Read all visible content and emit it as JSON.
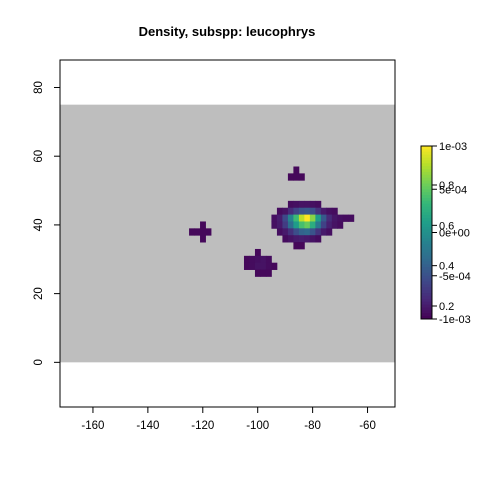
{
  "chart_data": {
    "type": "heatmap",
    "title": "Density, subspp: leucophrys",
    "xlabel": "",
    "ylabel": "",
    "xlim": [
      -172,
      -50
    ],
    "ylim": [
      -13,
      88
    ],
    "x_ticks": [
      -160,
      -140,
      -120,
      -100,
      -80,
      -60
    ],
    "y_ticks": [
      0,
      20,
      40,
      60,
      80
    ],
    "background_region": {
      "x": [
        -172,
        -50
      ],
      "y": [
        0,
        75
      ],
      "color": "#bebebe"
    },
    "cell_size": 2,
    "cells": [
      {
        "x": -86,
        "y": 56,
        "v": 0.02
      },
      {
        "x": -86,
        "y": 54,
        "v": 0.02
      },
      {
        "x": -88,
        "y": 54,
        "v": 0.02
      },
      {
        "x": -84,
        "y": 54,
        "v": 0.02
      },
      {
        "x": -88,
        "y": 46,
        "v": 0.03
      },
      {
        "x": -86,
        "y": 46,
        "v": 0.04
      },
      {
        "x": -84,
        "y": 46,
        "v": 0.05
      },
      {
        "x": -82,
        "y": 46,
        "v": 0.05
      },
      {
        "x": -80,
        "y": 46,
        "v": 0.04
      },
      {
        "x": -78,
        "y": 46,
        "v": 0.03
      },
      {
        "x": -92,
        "y": 44,
        "v": 0.03
      },
      {
        "x": -90,
        "y": 44,
        "v": 0.05
      },
      {
        "x": -88,
        "y": 44,
        "v": 0.12
      },
      {
        "x": -86,
        "y": 44,
        "v": 0.2
      },
      {
        "x": -84,
        "y": 44,
        "v": 0.26
      },
      {
        "x": -82,
        "y": 44,
        "v": 0.28
      },
      {
        "x": -80,
        "y": 44,
        "v": 0.24
      },
      {
        "x": -78,
        "y": 44,
        "v": 0.14
      },
      {
        "x": -76,
        "y": 44,
        "v": 0.07
      },
      {
        "x": -74,
        "y": 44,
        "v": 0.04
      },
      {
        "x": -72,
        "y": 44,
        "v": 0.03
      },
      {
        "x": -94,
        "y": 42,
        "v": 0.04
      },
      {
        "x": -92,
        "y": 42,
        "v": 0.08
      },
      {
        "x": -90,
        "y": 42,
        "v": 0.22
      },
      {
        "x": -88,
        "y": 42,
        "v": 0.45
      },
      {
        "x": -86,
        "y": 42,
        "v": 0.68
      },
      {
        "x": -84,
        "y": 42,
        "v": 0.9
      },
      {
        "x": -82,
        "y": 42,
        "v": 1.0
      },
      {
        "x": -80,
        "y": 42,
        "v": 0.82
      },
      {
        "x": -78,
        "y": 42,
        "v": 0.55
      },
      {
        "x": -76,
        "y": 42,
        "v": 0.28
      },
      {
        "x": -74,
        "y": 42,
        "v": 0.12
      },
      {
        "x": -72,
        "y": 42,
        "v": 0.06
      },
      {
        "x": -70,
        "y": 42,
        "v": 0.04
      },
      {
        "x": -68,
        "y": 42,
        "v": 0.03
      },
      {
        "x": -66,
        "y": 42,
        "v": 0.03
      },
      {
        "x": -94,
        "y": 40,
        "v": 0.04
      },
      {
        "x": -92,
        "y": 40,
        "v": 0.07
      },
      {
        "x": -90,
        "y": 40,
        "v": 0.18
      },
      {
        "x": -88,
        "y": 40,
        "v": 0.36
      },
      {
        "x": -86,
        "y": 40,
        "v": 0.55
      },
      {
        "x": -84,
        "y": 40,
        "v": 0.7
      },
      {
        "x": -82,
        "y": 40,
        "v": 0.76
      },
      {
        "x": -80,
        "y": 40,
        "v": 0.62
      },
      {
        "x": -78,
        "y": 40,
        "v": 0.4
      },
      {
        "x": -76,
        "y": 40,
        "v": 0.2
      },
      {
        "x": -74,
        "y": 40,
        "v": 0.09
      },
      {
        "x": -72,
        "y": 40,
        "v": 0.05
      },
      {
        "x": -70,
        "y": 40,
        "v": 0.03
      },
      {
        "x": -92,
        "y": 38,
        "v": 0.04
      },
      {
        "x": -90,
        "y": 38,
        "v": 0.07
      },
      {
        "x": -88,
        "y": 38,
        "v": 0.14
      },
      {
        "x": -86,
        "y": 38,
        "v": 0.24
      },
      {
        "x": -84,
        "y": 38,
        "v": 0.32
      },
      {
        "x": -82,
        "y": 38,
        "v": 0.34
      },
      {
        "x": -80,
        "y": 38,
        "v": 0.26
      },
      {
        "x": -78,
        "y": 38,
        "v": 0.15
      },
      {
        "x": -76,
        "y": 38,
        "v": 0.07
      },
      {
        "x": -74,
        "y": 38,
        "v": 0.04
      },
      {
        "x": -90,
        "y": 36,
        "v": 0.03
      },
      {
        "x": -88,
        "y": 36,
        "v": 0.05
      },
      {
        "x": -86,
        "y": 36,
        "v": 0.07
      },
      {
        "x": -84,
        "y": 36,
        "v": 0.08
      },
      {
        "x": -82,
        "y": 36,
        "v": 0.07
      },
      {
        "x": -80,
        "y": 36,
        "v": 0.05
      },
      {
        "x": -78,
        "y": 36,
        "v": 0.03
      },
      {
        "x": -86,
        "y": 34,
        "v": 0.02
      },
      {
        "x": -84,
        "y": 34,
        "v": 0.02
      },
      {
        "x": -120,
        "y": 40,
        "v": 0.02
      },
      {
        "x": -124,
        "y": 38,
        "v": 0.02
      },
      {
        "x": -122,
        "y": 38,
        "v": 0.02
      },
      {
        "x": -120,
        "y": 38,
        "v": 0.02
      },
      {
        "x": -118,
        "y": 38,
        "v": 0.02
      },
      {
        "x": -120,
        "y": 36,
        "v": 0.02
      },
      {
        "x": -100,
        "y": 32,
        "v": 0.02
      },
      {
        "x": -104,
        "y": 30,
        "v": 0.02
      },
      {
        "x": -102,
        "y": 30,
        "v": 0.03
      },
      {
        "x": -100,
        "y": 30,
        "v": 0.04
      },
      {
        "x": -98,
        "y": 30,
        "v": 0.05
      },
      {
        "x": -96,
        "y": 30,
        "v": 0.03
      },
      {
        "x": -104,
        "y": 28,
        "v": 0.02
      },
      {
        "x": -102,
        "y": 28,
        "v": 0.03
      },
      {
        "x": -100,
        "y": 28,
        "v": 0.05
      },
      {
        "x": -98,
        "y": 28,
        "v": 0.05
      },
      {
        "x": -96,
        "y": 28,
        "v": 0.03
      },
      {
        "x": -94,
        "y": 28,
        "v": 0.02
      },
      {
        "x": -100,
        "y": 26,
        "v": 0.02
      },
      {
        "x": -98,
        "y": 26,
        "v": 0.02
      },
      {
        "x": -96,
        "y": 26,
        "v": 0.02
      }
    ],
    "colorbar": {
      "palette": [
        "#440154",
        "#482878",
        "#3e4989",
        "#31688e",
        "#26828e",
        "#1f9e89",
        "#35b779",
        "#6ece58",
        "#b5de2b",
        "#fde725"
      ],
      "labels_a": [
        "1e-03",
        "5e-04",
        "0e+00",
        "-5e-04",
        "-1e-03"
      ],
      "labels_b": [
        "0.8",
        "0.6",
        "0.4",
        "0.2"
      ]
    }
  }
}
